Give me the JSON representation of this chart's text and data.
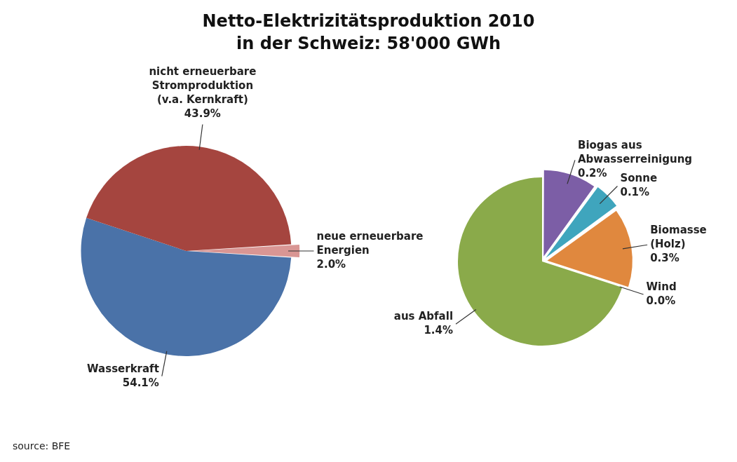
{
  "chart_data": [
    {
      "type": "pie",
      "title": "Netto-Elektrizitätsproduktion 2010 in der Schweiz: 58'000 GWh",
      "categories": [
        "neue erneuerbare Energien",
        "Wasserkraft",
        "nicht erneuerbare Stromproduktion (v.a. Kernkraft)"
      ],
      "values": [
        2.0,
        54.1,
        43.9
      ],
      "value_labels": [
        "2.0%",
        "54.1%",
        "43.9%"
      ],
      "colors": [
        "#d99694",
        "#4a72a8",
        "#a5453f"
      ],
      "annotations": [
        "source: BFE"
      ]
    },
    {
      "type": "pie",
      "categories": [
        "Biogas aus Abwasserreinigung",
        "Sonne",
        "Biomasse (Holz)",
        "Wind",
        "aus Abfall"
      ],
      "values": [
        0.2,
        0.1,
        0.3,
        0.0,
        1.4
      ],
      "value_labels": [
        "0.2%",
        "0.1%",
        "0.3%",
        "0.0%",
        "1.4%"
      ],
      "colors": [
        "#7c5ea6",
        "#3fa5bd",
        "#e0883e",
        "#9db6df",
        "#8aaa4a"
      ]
    }
  ]
}
